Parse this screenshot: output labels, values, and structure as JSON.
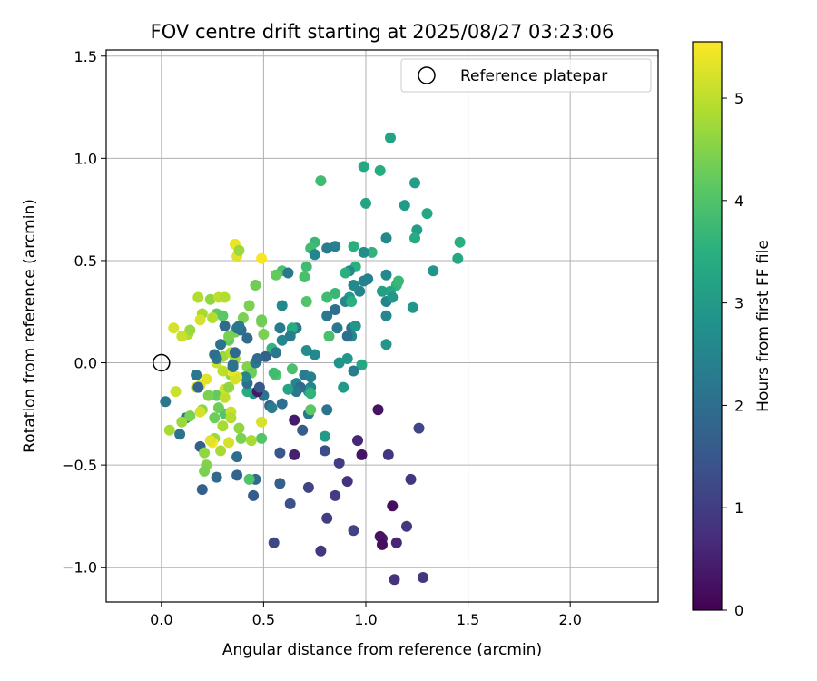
{
  "chart_data": {
    "type": "scatter",
    "title": "FOV centre drift starting at 2025/08/27 03:23:06",
    "xlabel": "Angular distance from reference (arcmin)",
    "ylabel": "Rotation from reference (arcmin)",
    "xlim": [
      -0.27,
      2.43
    ],
    "ylim": [
      -1.17,
      1.53
    ],
    "xticks": [
      0.0,
      0.5,
      1.0,
      1.5,
      2.0
    ],
    "xtick_labels": [
      "0.0",
      "0.5",
      "1.0",
      "1.5",
      "2.0"
    ],
    "yticks": [
      -1.0,
      -0.5,
      0.0,
      0.5,
      1.0,
      1.5
    ],
    "ytick_labels": [
      "−1.0",
      "−0.5",
      "0.0",
      "0.5",
      "1.0",
      "1.5"
    ],
    "grid": true,
    "legend": {
      "position": "top-right",
      "entries": [
        "Reference platepar"
      ]
    },
    "reference_point": {
      "x": 0.0,
      "y": 0.0
    },
    "colorbar": {
      "label": "Hours from first FF file",
      "range": [
        0,
        5.55
      ],
      "ticks": [
        0,
        1,
        2,
        3,
        4,
        5
      ],
      "tick_labels": [
        "0",
        "1",
        "2",
        "3",
        "4",
        "5"
      ],
      "colormap": "viridis"
    },
    "points": [
      [
        1.12,
        1.1,
        3.2
      ],
      [
        0.99,
        0.96,
        3.3
      ],
      [
        1.07,
        0.94,
        3.4
      ],
      [
        0.78,
        0.89,
        3.8
      ],
      [
        1.24,
        0.88,
        3.1
      ],
      [
        1.0,
        0.78,
        3.2
      ],
      [
        1.19,
        0.77,
        3.0
      ],
      [
        1.3,
        0.73,
        3.3
      ],
      [
        1.25,
        0.65,
        3.1
      ],
      [
        1.24,
        0.61,
        3.4
      ],
      [
        1.46,
        0.59,
        3.5
      ],
      [
        1.45,
        0.51,
        3.3
      ],
      [
        1.33,
        0.45,
        2.9
      ],
      [
        1.1,
        0.61,
        2.6
      ],
      [
        1.03,
        0.54,
        3.6
      ],
      [
        0.99,
        0.54,
        2.7
      ],
      [
        0.94,
        0.57,
        3.5
      ],
      [
        0.85,
        0.57,
        2.4
      ],
      [
        0.81,
        0.56,
        2.3
      ],
      [
        0.75,
        0.59,
        3.7
      ],
      [
        0.73,
        0.56,
        3.8
      ],
      [
        0.75,
        0.53,
        2.5
      ],
      [
        0.71,
        0.47,
        3.8
      ],
      [
        0.7,
        0.42,
        3.9
      ],
      [
        0.59,
        0.45,
        3.9
      ],
      [
        0.56,
        0.43,
        4.2
      ],
      [
        0.62,
        0.44,
        2.2
      ],
      [
        0.49,
        0.51,
        5.5
      ],
      [
        0.37,
        0.52,
        5.3
      ],
      [
        0.36,
        0.58,
        5.4
      ],
      [
        0.38,
        0.55,
        4.7
      ],
      [
        0.46,
        0.38,
        4.3
      ],
      [
        0.5,
        0.14,
        4.4
      ],
      [
        0.49,
        0.2,
        4.4
      ],
      [
        0.95,
        0.47,
        3.5
      ],
      [
        0.92,
        0.45,
        2.6
      ],
      [
        0.9,
        0.44,
        3.5
      ],
      [
        0.99,
        0.4,
        2.4
      ],
      [
        1.01,
        0.41,
        2.4
      ],
      [
        1.1,
        0.43,
        2.6
      ],
      [
        1.15,
        0.38,
        3.6
      ],
      [
        1.16,
        0.4,
        3.7
      ],
      [
        1.12,
        0.35,
        3.3
      ],
      [
        1.08,
        0.35,
        3.1
      ],
      [
        1.1,
        0.3,
        2.5
      ],
      [
        1.13,
        0.32,
        2.9
      ],
      [
        1.1,
        0.23,
        2.6
      ],
      [
        1.23,
        0.27,
        2.9
      ],
      [
        0.92,
        0.32,
        3.0
      ],
      [
        0.9,
        0.3,
        2.6
      ],
      [
        0.93,
        0.3,
        3.5
      ],
      [
        0.97,
        0.35,
        2.5
      ],
      [
        0.94,
        0.38,
        2.6
      ],
      [
        0.85,
        0.34,
        3.7
      ],
      [
        0.81,
        0.32,
        3.8
      ],
      [
        0.81,
        0.23,
        2.2
      ],
      [
        0.85,
        0.26,
        2.0
      ],
      [
        0.86,
        0.17,
        2.2
      ],
      [
        0.82,
        0.13,
        3.9
      ],
      [
        0.93,
        0.17,
        2.1
      ],
      [
        0.95,
        0.18,
        2.9
      ],
      [
        0.93,
        0.13,
        2.6
      ],
      [
        0.91,
        0.13,
        2.0
      ],
      [
        1.1,
        0.09,
        2.9
      ],
      [
        0.98,
        -0.01,
        3.3
      ],
      [
        0.94,
        -0.04,
        2.3
      ],
      [
        0.91,
        0.02,
        2.9
      ],
      [
        0.87,
        0.0,
        2.8
      ],
      [
        0.71,
        0.3,
        4.0
      ],
      [
        0.66,
        0.17,
        2.2
      ],
      [
        0.64,
        0.16,
        2.4
      ],
      [
        0.64,
        0.17,
        3.4
      ],
      [
        0.59,
        0.28,
        2.6
      ],
      [
        0.58,
        0.17,
        2.3
      ],
      [
        0.59,
        0.11,
        2.5
      ],
      [
        0.54,
        0.07,
        3.6
      ],
      [
        0.71,
        0.06,
        2.7
      ],
      [
        0.75,
        0.04,
        2.6
      ],
      [
        0.64,
        -0.03,
        3.9
      ],
      [
        0.56,
        -0.06,
        4.0
      ],
      [
        0.55,
        -0.05,
        3.8
      ],
      [
        0.7,
        -0.06,
        2.3
      ],
      [
        0.73,
        -0.07,
        2.4
      ],
      [
        0.73,
        -0.12,
        2.5
      ],
      [
        0.72,
        -0.14,
        2.9
      ],
      [
        0.66,
        -0.1,
        2.5
      ],
      [
        0.68,
        -0.12,
        1.9
      ],
      [
        0.73,
        -0.15,
        3.6
      ],
      [
        0.66,
        -0.14,
        2.2
      ],
      [
        0.62,
        -0.13,
        3.2
      ],
      [
        0.45,
        -0.15,
        2.9
      ],
      [
        0.42,
        -0.14,
        3.4
      ],
      [
        0.42,
        -0.1,
        2.0
      ],
      [
        0.44,
        -0.04,
        4.3
      ],
      [
        0.42,
        -0.02,
        4.5
      ],
      [
        0.44,
        -0.05,
        4.3
      ],
      [
        0.41,
        -0.07,
        2.5
      ],
      [
        0.46,
        0.0,
        2.2
      ],
      [
        0.51,
        0.03,
        1.7
      ],
      [
        0.5,
        -0.16,
        2.1
      ],
      [
        0.47,
        -0.14,
        0.4
      ],
      [
        0.48,
        -0.12,
        1.5
      ],
      [
        0.53,
        -0.21,
        1.8
      ],
      [
        0.54,
        -0.22,
        2.3
      ],
      [
        0.72,
        -0.25,
        2.2
      ],
      [
        0.73,
        -0.23,
        4.1
      ],
      [
        0.81,
        -0.23,
        2.1
      ],
      [
        0.89,
        -0.12,
        3.0
      ],
      [
        0.8,
        -0.36,
        3.0
      ],
      [
        1.06,
        -0.23,
        0.3
      ],
      [
        0.65,
        -0.28,
        0.4
      ],
      [
        0.69,
        -0.33,
        1.6
      ],
      [
        0.58,
        -0.44,
        1.5
      ],
      [
        0.65,
        -0.45,
        0.5
      ],
      [
        0.8,
        -0.43,
        1.3
      ],
      [
        0.96,
        -0.38,
        0.6
      ],
      [
        0.98,
        -0.45,
        0.3
      ],
      [
        0.87,
        -0.49,
        1.0
      ],
      [
        0.85,
        -0.65,
        1.0
      ],
      [
        0.91,
        -0.58,
        0.8
      ],
      [
        0.72,
        -0.61,
        1.1
      ],
      [
        0.58,
        -0.59,
        1.7
      ],
      [
        0.63,
        -0.69,
        1.4
      ],
      [
        0.45,
        -0.65,
        1.6
      ],
      [
        0.46,
        -0.57,
        1.9
      ],
      [
        0.37,
        -0.55,
        1.8
      ],
      [
        0.27,
        -0.56,
        1.9
      ],
      [
        0.2,
        -0.62,
        1.7
      ],
      [
        0.43,
        -0.57,
        4.0
      ],
      [
        0.49,
        -0.37,
        4.0
      ],
      [
        0.49,
        -0.29,
        5.2
      ],
      [
        0.38,
        -0.32,
        4.6
      ],
      [
        0.39,
        -0.37,
        4.4
      ],
      [
        0.44,
        -0.38,
        4.8
      ],
      [
        0.37,
        -0.46,
        2.0
      ],
      [
        0.33,
        -0.39,
        5.2
      ],
      [
        0.29,
        -0.43,
        4.8
      ],
      [
        0.26,
        -0.37,
        4.7
      ],
      [
        0.25,
        -0.39,
        5.5
      ],
      [
        0.3,
        -0.31,
        4.8
      ],
      [
        0.26,
        -0.27,
        4.3
      ],
      [
        0.31,
        -0.25,
        4.0
      ],
      [
        0.34,
        -0.24,
        5.1
      ],
      [
        0.34,
        -0.27,
        4.9
      ],
      [
        0.28,
        -0.22,
        4.3
      ],
      [
        0.27,
        -0.16,
        4.2
      ],
      [
        0.31,
        -0.17,
        5.0
      ],
      [
        0.31,
        -0.13,
        5.1
      ],
      [
        0.33,
        -0.12,
        4.6
      ],
      [
        0.34,
        -0.06,
        4.6
      ],
      [
        0.37,
        -0.07,
        5.3
      ],
      [
        0.36,
        -0.08,
        5.2
      ],
      [
        0.34,
        -0.04,
        5.4
      ],
      [
        0.3,
        -0.04,
        5.0
      ],
      [
        0.27,
        0.0,
        5.1
      ],
      [
        0.3,
        0.03,
        4.7
      ],
      [
        0.34,
        0.05,
        4.9
      ],
      [
        0.36,
        0.02,
        4.8
      ],
      [
        0.36,
        0.05,
        1.9
      ],
      [
        0.35,
        -0.02,
        2.2
      ],
      [
        0.27,
        0.02,
        2.1
      ],
      [
        0.26,
        0.04,
        5.0
      ],
      [
        0.22,
        -0.08,
        5.3
      ],
      [
        0.17,
        -0.06,
        2.2
      ],
      [
        0.19,
        -0.11,
        5.3
      ],
      [
        0.17,
        -0.12,
        5.3
      ],
      [
        0.18,
        -0.12,
        1.8
      ],
      [
        0.23,
        -0.16,
        4.4
      ],
      [
        0.2,
        -0.23,
        4.6
      ],
      [
        0.12,
        -0.27,
        2.3
      ],
      [
        0.14,
        -0.26,
        4.4
      ],
      [
        0.19,
        -0.24,
        5.2
      ],
      [
        0.1,
        -0.29,
        4.7
      ],
      [
        0.09,
        -0.35,
        2.1
      ],
      [
        0.04,
        -0.33,
        4.8
      ],
      [
        0.07,
        -0.14,
        5.1
      ],
      [
        0.02,
        -0.19,
        2.2
      ],
      [
        0.19,
        -0.41,
        1.7
      ],
      [
        0.21,
        -0.44,
        4.6
      ],
      [
        0.24,
        -0.38,
        5.3
      ],
      [
        0.22,
        -0.5,
        4.5
      ],
      [
        0.21,
        -0.53,
        4.4
      ],
      [
        0.18,
        0.32,
        4.9
      ],
      [
        0.24,
        0.31,
        4.6
      ],
      [
        0.28,
        0.32,
        5.0
      ],
      [
        0.31,
        0.32,
        4.9
      ],
      [
        0.27,
        0.24,
        4.2
      ],
      [
        0.3,
        0.23,
        4.1
      ],
      [
        0.2,
        0.24,
        4.8
      ],
      [
        0.19,
        0.21,
        5.2
      ],
      [
        0.25,
        0.22,
        4.9
      ],
      [
        0.13,
        0.14,
        4.9
      ],
      [
        0.14,
        0.16,
        4.7
      ],
      [
        0.1,
        0.13,
        5.1
      ],
      [
        0.06,
        0.17,
        5.2
      ],
      [
        0.31,
        0.18,
        1.9
      ],
      [
        0.36,
        0.15,
        4.4
      ],
      [
        0.37,
        0.17,
        2.2
      ],
      [
        0.39,
        0.16,
        2.0
      ],
      [
        0.4,
        0.22,
        4.4
      ],
      [
        0.43,
        0.28,
        4.4
      ],
      [
        0.42,
        0.12,
        1.9
      ],
      [
        0.33,
        0.11,
        4.2
      ],
      [
        0.29,
        0.09,
        4.1
      ],
      [
        0.26,
        0.04,
        2.0
      ],
      [
        0.29,
        0.09,
        2.1
      ],
      [
        0.33,
        0.13,
        4.4
      ],
      [
        0.49,
        0.21,
        4.3
      ],
      [
        0.59,
        -0.2,
        2.0
      ],
      [
        1.15,
        -0.88,
        0.6
      ],
      [
        1.13,
        -0.7,
        0.2
      ],
      [
        1.11,
        -0.45,
        0.9
      ],
      [
        1.08,
        -0.86,
        0.5
      ],
      [
        1.07,
        -0.85,
        0.3
      ],
      [
        1.08,
        -0.89,
        0.2
      ],
      [
        1.2,
        -0.8,
        0.9
      ],
      [
        1.22,
        -0.57,
        0.9
      ],
      [
        1.26,
        -0.32,
        1.2
      ],
      [
        1.14,
        -1.06,
        0.8
      ],
      [
        1.28,
        -1.05,
        0.9
      ],
      [
        0.94,
        -0.82,
        1.1
      ],
      [
        0.78,
        -0.92,
        0.9
      ],
      [
        0.81,
        -0.76,
        1.0
      ],
      [
        0.55,
        -0.88,
        1.2
      ],
      [
        0.35,
        -0.01,
        2.1
      ],
      [
        0.38,
        0.18,
        2.2
      ],
      [
        0.47,
        0.02,
        1.9
      ],
      [
        0.56,
        0.05,
        2.2
      ],
      [
        0.63,
        0.13,
        2.3
      ]
    ]
  }
}
